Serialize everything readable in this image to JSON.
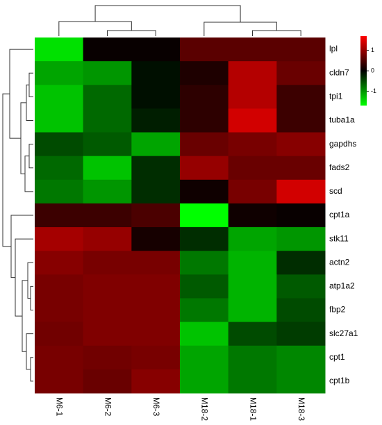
{
  "chart_data": {
    "type": "heatmap",
    "columns": [
      "M6-1",
      "M6-2",
      "M6-3",
      "M18-2",
      "M18-1",
      "M18-3"
    ],
    "rows": [
      "lpl",
      "cldn7",
      "tpi1",
      "tuba1a",
      "gapdhs",
      "fads2",
      "scd",
      "cpt1a",
      "stk11",
      "actn2",
      "atp1a2",
      "fbp2",
      "slc27a1",
      "cpt1",
      "cpt1b"
    ],
    "z": [
      [
        -1.5,
        0.05,
        0.05,
        0.6,
        0.6,
        0.6
      ],
      [
        -1.1,
        -1.0,
        -0.1,
        0.2,
        1.2,
        0.7
      ],
      [
        -1.3,
        -0.7,
        -0.1,
        0.3,
        1.2,
        0.4
      ],
      [
        -1.3,
        -0.7,
        -0.2,
        0.3,
        1.4,
        0.4
      ],
      [
        -0.5,
        -0.6,
        -1.1,
        0.7,
        0.8,
        0.9
      ],
      [
        -0.7,
        -1.3,
        -0.3,
        1.0,
        0.7,
        0.7
      ],
      [
        -0.8,
        -1.0,
        -0.3,
        0.1,
        0.8,
        1.4
      ],
      [
        0.4,
        0.4,
        0.5,
        -1.7,
        0.1,
        0.05
      ],
      [
        1.1,
        1.0,
        0.15,
        -0.3,
        -1.1,
        -1.0
      ],
      [
        0.9,
        0.8,
        0.8,
        -0.8,
        -1.2,
        -0.3
      ],
      [
        0.8,
        0.85,
        0.85,
        -0.6,
        -1.2,
        -0.6
      ],
      [
        0.8,
        0.85,
        0.85,
        -0.8,
        -1.2,
        -0.5
      ],
      [
        0.75,
        0.85,
        0.85,
        -1.3,
        -0.5,
        -0.4
      ],
      [
        0.8,
        0.75,
        0.8,
        -1.1,
        -0.8,
        -0.9
      ],
      [
        0.8,
        0.7,
        0.9,
        -1.1,
        -0.8,
        -0.9
      ]
    ],
    "clim": [
      -1.7,
      1.7
    ],
    "colorbar_ticks": [
      1,
      0,
      -1
    ],
    "colors": {
      "low": "#00ff00",
      "mid": "#000000",
      "high": "#ff0000"
    }
  }
}
